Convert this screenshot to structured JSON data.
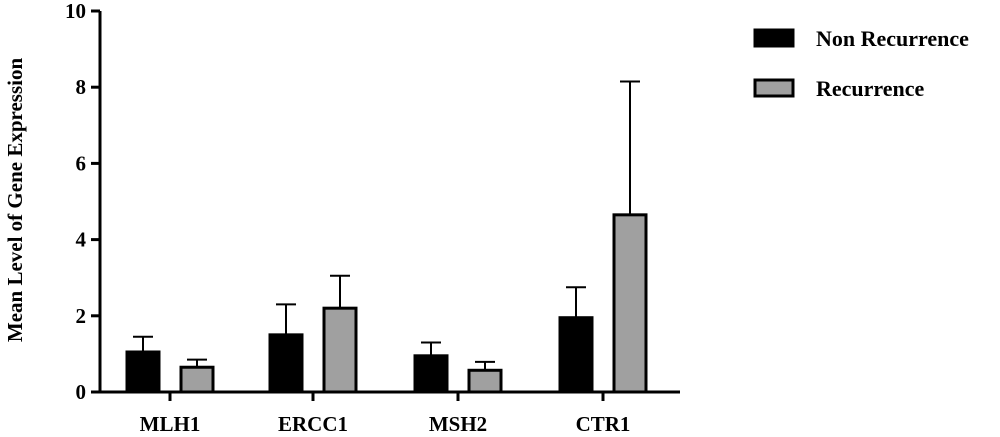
{
  "chart_data": {
    "type": "bar",
    "title": "",
    "xlabel": "",
    "ylabel": "Mean Level of Gene Expression",
    "ylim": [
      0,
      10
    ],
    "yticks": [
      0,
      2,
      4,
      6,
      8,
      10
    ],
    "categories": [
      "MLH1",
      "ERCC1",
      "MSH2",
      "CTR1"
    ],
    "series": [
      {
        "name": "Non Recurrence",
        "color": "#000000",
        "values": [
          1.05,
          1.5,
          0.95,
          1.95
        ],
        "error_upper": [
          0.4,
          0.8,
          0.35,
          0.8
        ]
      },
      {
        "name": "Recurrence",
        "color": "#a0a0a0",
        "values": [
          0.65,
          2.2,
          0.57,
          4.65
        ],
        "error_upper": [
          0.2,
          0.85,
          0.22,
          3.5
        ]
      }
    ],
    "grid": false,
    "legend_position": "top-right"
  }
}
